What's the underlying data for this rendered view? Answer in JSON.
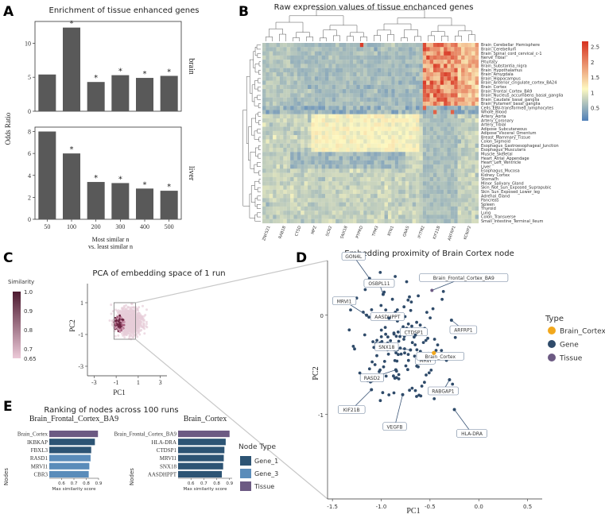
{
  "panels": {
    "a": "A",
    "b": "B",
    "c": "C",
    "d": "D",
    "e": "E"
  },
  "chart_data": [
    {
      "type": "bar",
      "title": "Enrichment of tissue enhanced genes",
      "ylabel": "Odds Ratio",
      "xlabel_line1": "Most similar n",
      "xlabel_line2": "vs. least similar n",
      "categories": [
        "50",
        "100",
        "200",
        "300",
        "400",
        "500"
      ],
      "star": "*",
      "facets": [
        {
          "name": "brain",
          "values": [
            5.4,
            12.3,
            4.3,
            5.3,
            4.9,
            5.2
          ],
          "stars": [
            false,
            true,
            true,
            true,
            true,
            true
          ],
          "ylim": [
            0,
            13.2
          ],
          "ticks": [
            0,
            5,
            10
          ]
        },
        {
          "name": "liver",
          "values": [
            8.0,
            6.0,
            3.4,
            3.3,
            2.8,
            2.6
          ],
          "stars": [
            false,
            true,
            true,
            true,
            true,
            true
          ],
          "ylim": [
            0,
            8.4
          ],
          "ticks": [
            0,
            2,
            4,
            6,
            8
          ]
        }
      ]
    },
    {
      "type": "heatmap",
      "title": "Raw expression values of tissue enchanced genes",
      "rows": [
        "Brain_Cerebellar_Hemisphere",
        "Brain_Cerebellum",
        "Brain_Spinal_cord_cervical_c-1",
        "Nerve_Tibial",
        "Pituitary",
        "Brain_Substantia_nigra",
        "Brain_Hypothalamus",
        "Brain_Amygdala",
        "Brain_Hippocampus",
        "Brain_Anterior_cingulate_cortex_BA24",
        "Brain_Cortex",
        "Brain_Frontal_Cortex_BA9",
        "Brain_Nucleus_accumbens_basal_ganglia",
        "Brain_Caudate_basal_ganglia",
        "Brain_Putamen_basal_ganglia",
        "Cells_EBV-transformed_lymphocytes",
        "Whole_Blood",
        "Artery_Aorta",
        "Artery_Coronary",
        "Artery_Tibial",
        "Adipose_Subcutaneous",
        "Adipose_Visceral_Omentum",
        "Breast_Mammary_Tissue",
        "Colon_Sigmoid",
        "Esophagus_Gastroesophageal_Junction",
        "Esophagus_Muscularis",
        "Muscle_Skeletal",
        "Heart_Atrial_Appendage",
        "Heart_Left_Ventricle",
        "Liver",
        "Esophagus_Mucosa",
        "Kidney_Cortex",
        "Stomach",
        "Minor_Salivary_Gland",
        "Skin_Not_Sun_Exposed_Suprapubic",
        "Skin_Sun_Exposed_Lower_leg",
        "Adrenal_Gland",
        "Pancreas",
        "Spleen",
        "Thyroid",
        "Lung",
        "Colon_Transverse",
        "Small_Intestine_Terminal_Ileum"
      ],
      "col_count": 62,
      "col_labels_visible": [
        "ZNF521",
        "RAB1B",
        "CTSD",
        "MPZ",
        "SCN2",
        "SNX18",
        "PTPRD",
        "TPM3",
        "RTN1",
        "GNAS",
        "IFITM2",
        "KIF21B",
        "ARFRP1",
        "KCNIP2"
      ],
      "legend_ticks": [
        "2.5",
        "2",
        "1.5",
        "1",
        "0.5"
      ],
      "colors": {
        "low": "#4f7fb8",
        "mid": "#fdf8c0",
        "high": "#d7301f"
      }
    },
    {
      "type": "scatter",
      "title": "PCA of embedding space of 1 run",
      "xlabel": "PC1",
      "ylabel": "PC2",
      "xticks": [
        "-3",
        "-1",
        "1",
        "3"
      ],
      "yticks": [
        "1",
        "-1",
        "-3"
      ],
      "xlim": [
        -3.6,
        3.6
      ],
      "ylim": [
        -3.6,
        2.2
      ],
      "legend_title": "Similarity",
      "legend_ticks": [
        "1.0",
        "0.9",
        "0.8",
        "0.7",
        "0.65"
      ],
      "zoom_box": {
        "x": [
          -1.2,
          0.75
        ],
        "y": [
          -1.3,
          1.0
        ]
      }
    },
    {
      "type": "scatter",
      "title": "Embedding proximity of Brain Cortex node",
      "xlabel": "PC1",
      "ylabel": "PC2",
      "xticks": [
        "-1.5",
        "-1.0",
        "-0.5",
        "0.0",
        "0.5"
      ],
      "yticks": [
        "0",
        "-1"
      ],
      "xlim": [
        -1.55,
        0.65
      ],
      "ylim": [
        -1.85,
        0.55
      ],
      "legend_title": "Type",
      "legend": [
        {
          "label": "Brain_Cortex",
          "color": "#f2a81d"
        },
        {
          "label": "Gene",
          "color": "#2f4b6a"
        },
        {
          "label": "Tissue",
          "color": "#6c5a83"
        }
      ],
      "points_labeled": [
        {
          "label": "GON4L",
          "x": -1.12,
          "y": 0.37
        },
        {
          "label": "OSBPL11",
          "x": -0.98,
          "y": 0.21
        },
        {
          "label": "MRVI1",
          "x": -1.15,
          "y": 0.0
        },
        {
          "label": "AASDHPPT",
          "x": -0.92,
          "y": -0.03
        },
        {
          "label": "CTDSP1",
          "x": -0.65,
          "y": -0.2
        },
        {
          "label": "SNX18",
          "x": -0.7,
          "y": -0.35
        },
        {
          "label": "MRVI",
          "x": -0.5,
          "y": -0.42
        },
        {
          "label": "Brain_Cortex",
          "x": -0.46,
          "y": -0.38
        },
        {
          "label": "ARFRP1",
          "x": -0.28,
          "y": -0.05
        },
        {
          "label": "RASD2",
          "x": -0.85,
          "y": -0.55
        },
        {
          "label": "RABGAP1",
          "x": -0.3,
          "y": -0.65
        },
        {
          "label": "KIF21B",
          "x": -1.1,
          "y": -0.75
        },
        {
          "label": "VEGFB",
          "x": -0.78,
          "y": -0.8
        },
        {
          "label": "HLA-DRA",
          "x": -0.25,
          "y": -0.95
        },
        {
          "label": "Brain_Frontal_Cortex_BA9",
          "x": -0.48,
          "y": 0.25
        }
      ]
    },
    {
      "type": "bar",
      "orientation": "horizontal",
      "title": "Ranking of nodes across 100 runs",
      "xlabel": "Max similarity score",
      "ylabel": "Nodes",
      "legend_title": "Node Type",
      "legend": [
        {
          "label": "Gene_1",
          "color": "#2d5474"
        },
        {
          "label": "Gene_3",
          "color": "#5a8cba"
        },
        {
          "label": "Tissue",
          "color": "#6c5a83"
        }
      ],
      "facets": [
        {
          "name": "Brain_Frontal_Cortex_BA9",
          "xticks": [
            "0.6",
            "0.7",
            "0.8",
            "0.9"
          ],
          "xlim": [
            0.5,
            0.9
          ],
          "bars": [
            {
              "label": "Brain_Cortex",
              "value": 0.895,
              "type": "Tissue"
            },
            {
              "label": "IKBKAP",
              "value": 0.87,
              "type": "Gene_1"
            },
            {
              "label": "FBXL3",
              "value": 0.84,
              "type": "Gene_1"
            },
            {
              "label": "RASD1",
              "value": 0.835,
              "type": "Gene_3"
            },
            {
              "label": "MRVI1",
              "value": 0.825,
              "type": "Gene_3"
            },
            {
              "label": "CBR3",
              "value": 0.82,
              "type": "Gene_3"
            }
          ]
        },
        {
          "name": "Brain_Cortex",
          "xticks": [
            "0.6",
            "0.7",
            "0.8",
            "0.9"
          ],
          "xlim": [
            0.5,
            0.92
          ],
          "bars": [
            {
              "label": "Brain_Frontal_Cortex_BA9",
              "value": 0.9,
              "type": "Tissue"
            },
            {
              "label": "HLA-DRA",
              "value": 0.87,
              "type": "Gene_1"
            },
            {
              "label": "CTDSP1",
              "value": 0.86,
              "type": "Gene_1"
            },
            {
              "label": "MRVI1",
              "value": 0.855,
              "type": "Gene_1"
            },
            {
              "label": "SNX18",
              "value": 0.85,
              "type": "Gene_1"
            },
            {
              "label": "AASDHPPT",
              "value": 0.84,
              "type": "Gene_1"
            }
          ]
        }
      ]
    }
  ]
}
